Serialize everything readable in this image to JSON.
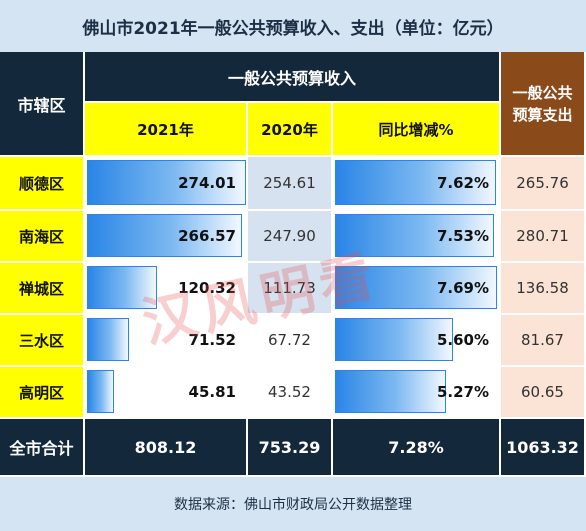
{
  "title": "佛山市2021年一般公共预算收入、支出（单位：亿元）",
  "header": {
    "district": "市辖区",
    "revenue_group": "一般公共预算收入",
    "y2021": "2021年",
    "y2020": "2020年",
    "growth": "同比增减%",
    "expenditure": "一般公共预算支出"
  },
  "rows": [
    {
      "name": "顺德区",
      "y2021": "274.01",
      "y2020": "254.61",
      "growth": "7.62%",
      "expend": "265.76",
      "v2021": 274.01,
      "vgrowth": 7.62
    },
    {
      "name": "南海区",
      "y2021": "266.57",
      "y2020": "247.90",
      "growth": "7.53%",
      "expend": "280.71",
      "v2021": 266.57,
      "vgrowth": 7.53
    },
    {
      "name": "禅城区",
      "y2021": "120.32",
      "y2020": "111.73",
      "growth": "7.69%",
      "expend": "136.58",
      "v2021": 120.32,
      "vgrowth": 7.69
    },
    {
      "name": "三水区",
      "y2021": "71.52",
      "y2020": "67.72",
      "growth": "5.60%",
      "expend": "81.67",
      "v2021": 71.52,
      "vgrowth": 5.6
    },
    {
      "name": "高明区",
      "y2021": "45.81",
      "y2020": "43.52",
      "growth": "5.27%",
      "expend": "60.65",
      "v2021": 45.81,
      "vgrowth": 5.27
    }
  ],
  "total": {
    "name": "全市合计",
    "y2021": "808.12",
    "y2020": "753.29",
    "growth": "7.28%",
    "expend": "1063.32"
  },
  "source": "数据来源：佛山市财政局公开数据整理",
  "watermark": "汉风明看",
  "colors": {
    "navy": "#14283c",
    "yellow": "#ffff00",
    "brown": "#8a4a1a",
    "bar": "#2a85e6"
  }
}
